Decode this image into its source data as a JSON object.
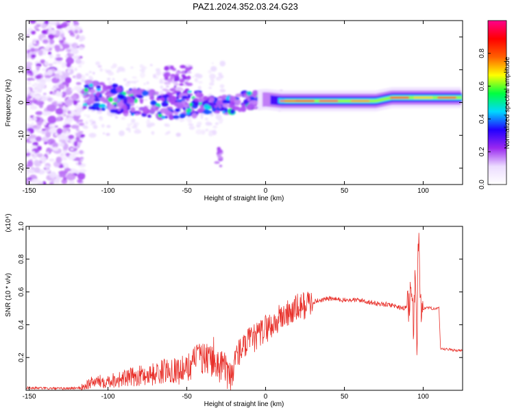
{
  "title": "PAZ1.2024.352.03.24.G23",
  "chart_data": [
    {
      "type": "heatmap",
      "xlabel": "Height of straight line (km)",
      "ylabel": "Frequency (Hz)",
      "xlim": [
        -152,
        125
      ],
      "ylim": [
        -25,
        25
      ],
      "xticks": [
        -150,
        -100,
        -50,
        0,
        50,
        100
      ],
      "yticks": [
        -20,
        -10,
        0,
        10,
        20
      ],
      "colorbar": {
        "label": "Normalized spectral amplitude",
        "range": [
          0,
          1
        ],
        "ticks": [
          "0.0",
          "0.2",
          "0.4",
          "0.6",
          "0.8"
        ],
        "tick_values": [
          0,
          0.2,
          0.4,
          0.6,
          0.8
        ],
        "colors": [
          "#ffffff",
          "#ecdcff",
          "#9a28f0",
          "#2200ff",
          "#00d8ff",
          "#00ff40",
          "#ffff00",
          "#ff6000",
          "#ff0000",
          "#ff008c"
        ]
      },
      "ridge": {
        "x": [
          -115,
          -100,
          -80,
          -60,
          -40,
          -25,
          -20,
          -10,
          0,
          10,
          30,
          50,
          70,
          80,
          90,
          100,
          110,
          125
        ],
        "y": [
          2.5,
          1.5,
          0,
          -1,
          -0.5,
          -0.5,
          -0.5,
          0.5,
          1,
          0.5,
          0.5,
          0.5,
          0.5,
          1.5,
          1.5,
          1.5,
          1.5,
          1.5
        ]
      }
    },
    {
      "type": "line",
      "xlabel": "Height of straight line (km)",
      "ylabel": "SNR (10 * v/v)",
      "scale_label": "(x10⁴)",
      "xlim": [
        -152,
        125
      ],
      "ylim": [
        0,
        1.0
      ],
      "xticks": [
        -150,
        -100,
        -50,
        0,
        50,
        100
      ],
      "yticks": [
        0.2,
        0.4,
        0.6,
        0.8,
        1.0
      ],
      "color": "#e8302a",
      "series": [
        {
          "x": [
            -152,
            -130,
            -117,
            -110,
            -100,
            -90,
            -80,
            -70,
            -60,
            -55,
            -50,
            -45,
            -40,
            -35,
            -30,
            -25,
            -21,
            -20,
            -15,
            -10,
            -5,
            0,
            5,
            10,
            15,
            20,
            25,
            30,
            35,
            40,
            50,
            60,
            70,
            80,
            88,
            92,
            94,
            95,
            96,
            97,
            98,
            100,
            105,
            110,
            111,
            115,
            125
          ],
          "y": [
            0.015,
            0.01,
            0.015,
            0.05,
            0.06,
            0.07,
            0.09,
            0.1,
            0.13,
            0.12,
            0.13,
            0.18,
            0.2,
            0.18,
            0.16,
            0.12,
            0.05,
            0.2,
            0.25,
            0.3,
            0.33,
            0.38,
            0.4,
            0.45,
            0.47,
            0.5,
            0.52,
            0.54,
            0.55,
            0.56,
            0.55,
            0.55,
            0.53,
            0.52,
            0.5,
            0.55,
            0.4,
            0.7,
            0.15,
            1.0,
            0.5,
            0.5,
            0.5,
            0.5,
            0.25,
            0.25,
            0.24
          ]
        }
      ]
    }
  ]
}
